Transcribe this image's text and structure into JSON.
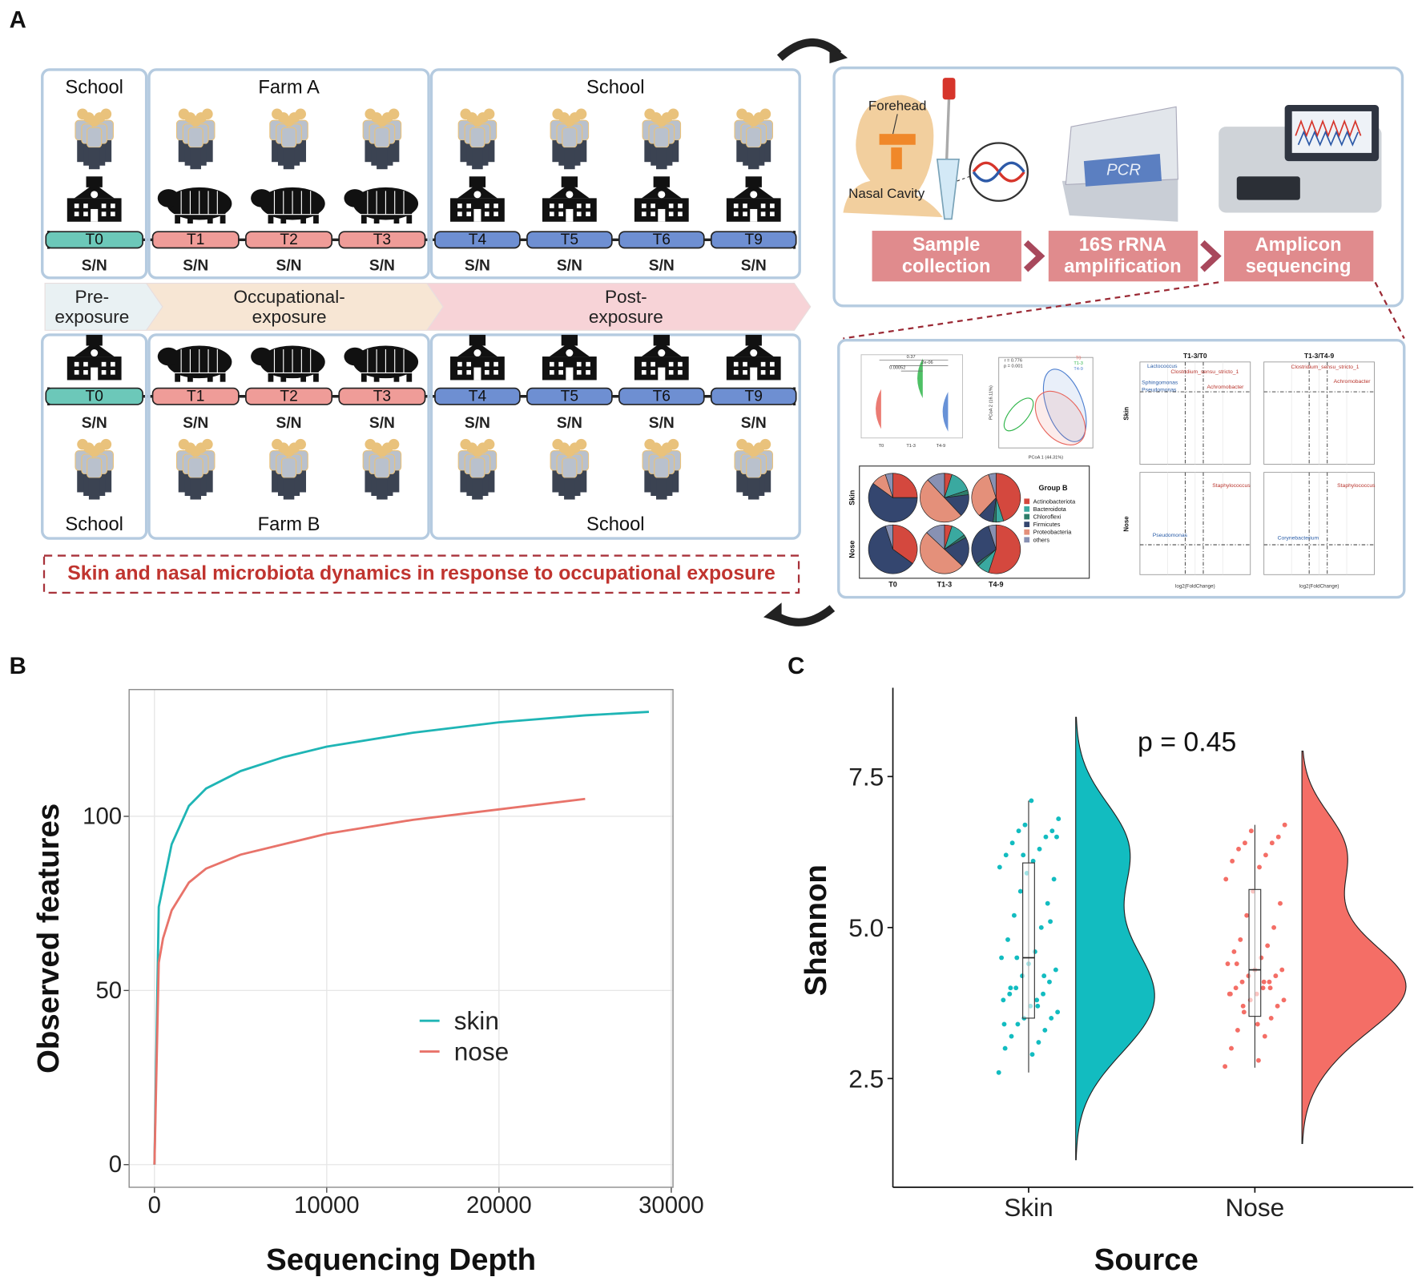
{
  "panel_labels": [
    "A",
    "B",
    "C"
  ],
  "diagram": {
    "cohort_top": {
      "groups": [
        {
          "label": "School",
          "icon": "school",
          "color": "#6cc8b9",
          "timepoints": [
            "T0"
          ]
        },
        {
          "label": "Farm A",
          "icon": "pig",
          "color": "#ef9c98",
          "timepoints": [
            "T1",
            "T2",
            "T3"
          ]
        },
        {
          "label": "School",
          "icon": "school",
          "color": "#6e8fd2",
          "timepoints": [
            "T4",
            "T5",
            "T6",
            "T9"
          ]
        }
      ]
    },
    "cohort_bottom": {
      "groups": [
        {
          "label": "School",
          "icon": "school",
          "color": "#6cc8b9",
          "timepoints": [
            "T0"
          ]
        },
        {
          "label": "Farm B",
          "icon": "pig",
          "color": "#ef9c98",
          "timepoints": [
            "T1",
            "T2",
            "T3"
          ]
        },
        {
          "label": "School",
          "icon": "school",
          "color": "#6e8fd2",
          "timepoints": [
            "T4",
            "T5",
            "T6",
            "T9"
          ]
        }
      ]
    },
    "sample_label": "S/N",
    "phases": [
      [
        "Pre-",
        "exposure"
      ],
      [
        "Occupational-",
        "exposure"
      ],
      [
        "Post-",
        "exposure"
      ]
    ],
    "banner": "Skin and nasal microbiota dynamics in response to occupational exposure",
    "sampling": {
      "sites": [
        "Forehead",
        "Nasal Cavity"
      ],
      "device": "PCR",
      "steps": [
        [
          "Sample",
          "collection"
        ],
        [
          "16S rRNA",
          "amplification"
        ],
        [
          "Amplicon",
          "sequencing"
        ]
      ]
    },
    "results": {
      "violin": {
        "annotations": [
          "0.37",
          "2e-06",
          "0.00052"
        ],
        "groups": [
          "T0",
          "T1-3",
          "T4-9"
        ]
      },
      "pcoa": {
        "stats": [
          "r = 0.776",
          "p = 0.001"
        ],
        "xlabel": "PCoA 1 (44.31%)",
        "ylabel": "PCoA 2 (16.11%)",
        "groups": [
          "T0",
          "T1-3",
          "T4-9"
        ]
      },
      "pies": {
        "rows": [
          "Skin",
          "Nose"
        ],
        "columns": [
          "T0",
          "T1-3",
          "T4-9"
        ],
        "legend_title": "Group B",
        "phyla": [
          {
            "name": "Actinobacteriota",
            "color": "#d4483e"
          },
          {
            "name": "Bacteroidota",
            "color": "#3aa9a0"
          },
          {
            "name": "Chloroflexi",
            "color": "#2e7d6a"
          },
          {
            "name": "Firmicutes",
            "color": "#34466f"
          },
          {
            "name": "Proteobacteria",
            "color": "#e4907a"
          },
          {
            "name": "others",
            "color": "#8891b3"
          }
        ],
        "values": [
          [
            [
              25,
              0,
              0,
              60,
              10,
              5
            ],
            [
              5,
              15,
              3,
              15,
              50,
              12
            ],
            [
              45,
              5,
              2,
              10,
              33,
              5
            ]
          ],
          [
            [
              35,
              0,
              0,
              60,
              0,
              5
            ],
            [
              5,
              10,
              2,
              20,
              50,
              13
            ],
            [
              55,
              8,
              2,
              30,
              0,
              5
            ]
          ]
        ]
      },
      "volcano": {
        "titles": [
          "T1-3/T0",
          "T1-3/T4-9"
        ],
        "rows": [
          "Skin",
          "Nose"
        ],
        "xlabel": "log2(FoldChange)",
        "labels": [
          [
            {
              "name": "Lactococcus",
              "color": "#2a5da8"
            },
            {
              "name": "Clostridium_sensu_stricto_1",
              "color": "#b8332b"
            },
            {
              "name": "Sphingomonas",
              "color": "#2a5da8"
            },
            {
              "name": "Pseudomonas",
              "color": "#2a5da8"
            },
            {
              "name": "Achromobacter",
              "color": "#b8332b"
            }
          ],
          [
            {
              "name": "Clostridium_sensu_stricto_1",
              "color": "#b8332b"
            },
            {
              "name": "Achromobacter",
              "color": "#b8332b"
            }
          ],
          [
            {
              "name": "Staphylococcus",
              "color": "#b8332b"
            },
            {
              "name": "Pseudomonas",
              "color": "#2a5da8"
            }
          ],
          [
            {
              "name": "Staphylococcus",
              "color": "#b8332b"
            },
            {
              "name": "Corynebacterium",
              "color": "#2a5da8"
            }
          ]
        ]
      }
    }
  },
  "chart_data": [
    {
      "type": "line",
      "xlabel": "Sequencing Depth",
      "ylabel": "Observed features",
      "x": [
        0,
        250,
        500,
        1000,
        2000,
        3000,
        5000,
        7500,
        10000,
        15000,
        20000,
        25000,
        28700
      ],
      "series": [
        {
          "name": "skin",
          "color": "#1fb5b5",
          "values": [
            0,
            74,
            80,
            92,
            103,
            108,
            113,
            117,
            120,
            124,
            127,
            129,
            130
          ]
        },
        {
          "name": "nose",
          "color": "#e8736a",
          "values": [
            0,
            58,
            65,
            73,
            81,
            85,
            89,
            92,
            95,
            99,
            102,
            105,
            null
          ]
        }
      ],
      "xlim": [
        -1470,
        30100
      ],
      "ylim": [
        -6.5,
        136.4
      ],
      "xticks": [
        0,
        10000,
        20000,
        30000
      ],
      "yticks": [
        0,
        50,
        100
      ],
      "grid": true,
      "legend": "lower-center"
    },
    {
      "type": "raincloud",
      "annotation": "p = 0.45",
      "xlabel": "Source",
      "ylabel": "Shannon",
      "categories": [
        "Skin",
        "Nose"
      ],
      "colors": [
        "#12bcc0",
        "#f46e66"
      ],
      "ylim": [
        0.7,
        8.97
      ],
      "yticks": [
        2.5,
        {
          "value": 5,
          "label": "5.0"
        },
        7.5
      ],
      "boxes": [
        {
          "min": 2.6,
          "q1": 3.5,
          "median": 4.5,
          "q3": 6.07,
          "max": 7.1
        },
        {
          "min": 2.68,
          "q1": 3.53,
          "median": 4.3,
          "q3": 5.63,
          "max": 6.7
        }
      ],
      "points": [
        [
          2.6,
          2.9,
          3.0,
          3.1,
          3.2,
          3.3,
          3.4,
          3.5,
          3.5,
          3.6,
          3.7,
          3.8,
          3.8,
          3.9,
          3.9,
          4.0,
          4.1,
          4.2,
          4.3,
          4.4,
          4.5,
          4.6,
          4.8,
          5.0,
          5.2,
          5.4,
          5.6,
          5.8,
          5.9,
          6.0,
          6.1,
          6.2,
          6.3,
          6.4,
          6.5,
          6.6,
          6.6,
          6.7,
          6.8,
          7.1,
          3.4,
          3.7,
          4.0,
          4.2,
          4.5,
          5.1,
          6.2,
          6.5
        ],
        [
          2.7,
          2.8,
          3.0,
          3.2,
          3.3,
          3.5,
          3.6,
          3.7,
          3.8,
          3.8,
          3.9,
          3.9,
          4.0,
          4.0,
          4.1,
          4.1,
          4.2,
          4.2,
          4.3,
          4.3,
          4.4,
          4.5,
          4.6,
          4.7,
          4.8,
          5.0,
          5.2,
          5.4,
          5.6,
          5.8,
          6.0,
          6.1,
          6.2,
          6.3,
          6.4,
          6.4,
          6.5,
          6.6,
          6.7,
          3.4,
          3.9,
          4.1,
          4.4,
          4.0,
          3.7
        ]
      ]
    }
  ]
}
